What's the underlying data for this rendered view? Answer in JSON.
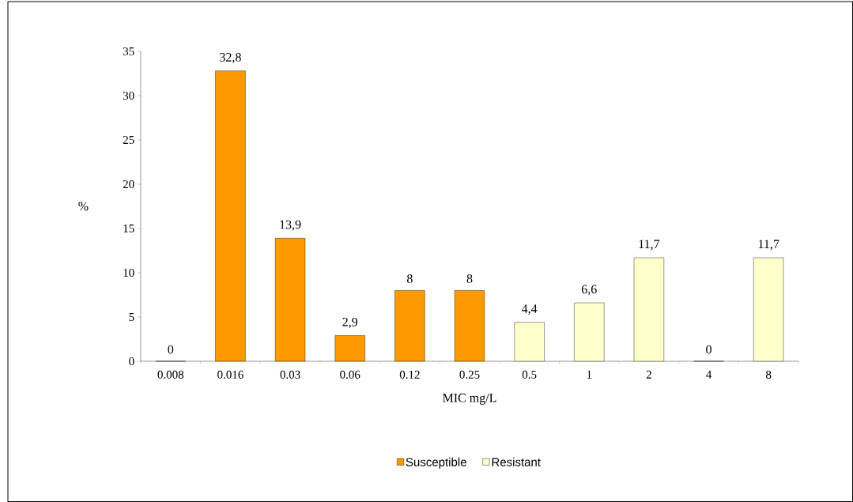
{
  "chart_data": {
    "type": "bar",
    "xlabel": "MIC mg/L",
    "ylabel": "%",
    "categories": [
      "0.008",
      "0.016",
      "0.03",
      "0.06",
      "0.12",
      "0.25",
      "0.5",
      "1",
      "2",
      "4",
      "8"
    ],
    "series": [
      {
        "name": "Susceptible",
        "color": "#ff9900",
        "values": [
          0,
          32.8,
          13.9,
          2.9,
          8,
          8,
          null,
          null,
          null,
          null,
          null
        ],
        "value_labels": [
          "0",
          "32,8",
          "13,9",
          "2,9",
          "8",
          "8",
          null,
          null,
          null,
          null,
          null
        ]
      },
      {
        "name": "Resistant",
        "color": "#ffffcc",
        "values": [
          null,
          null,
          null,
          null,
          null,
          null,
          4.4,
          6.6,
          11.7,
          0,
          11.7
        ],
        "value_labels": [
          null,
          null,
          null,
          null,
          null,
          null,
          "4,4",
          "6,6",
          "11,7",
          "0",
          "11,7"
        ]
      }
    ],
    "ylim": [
      0,
      35
    ],
    "yticks": [
      0,
      5,
      10,
      15,
      20,
      25,
      30,
      35
    ],
    "grid": false,
    "legend": "bottom"
  }
}
